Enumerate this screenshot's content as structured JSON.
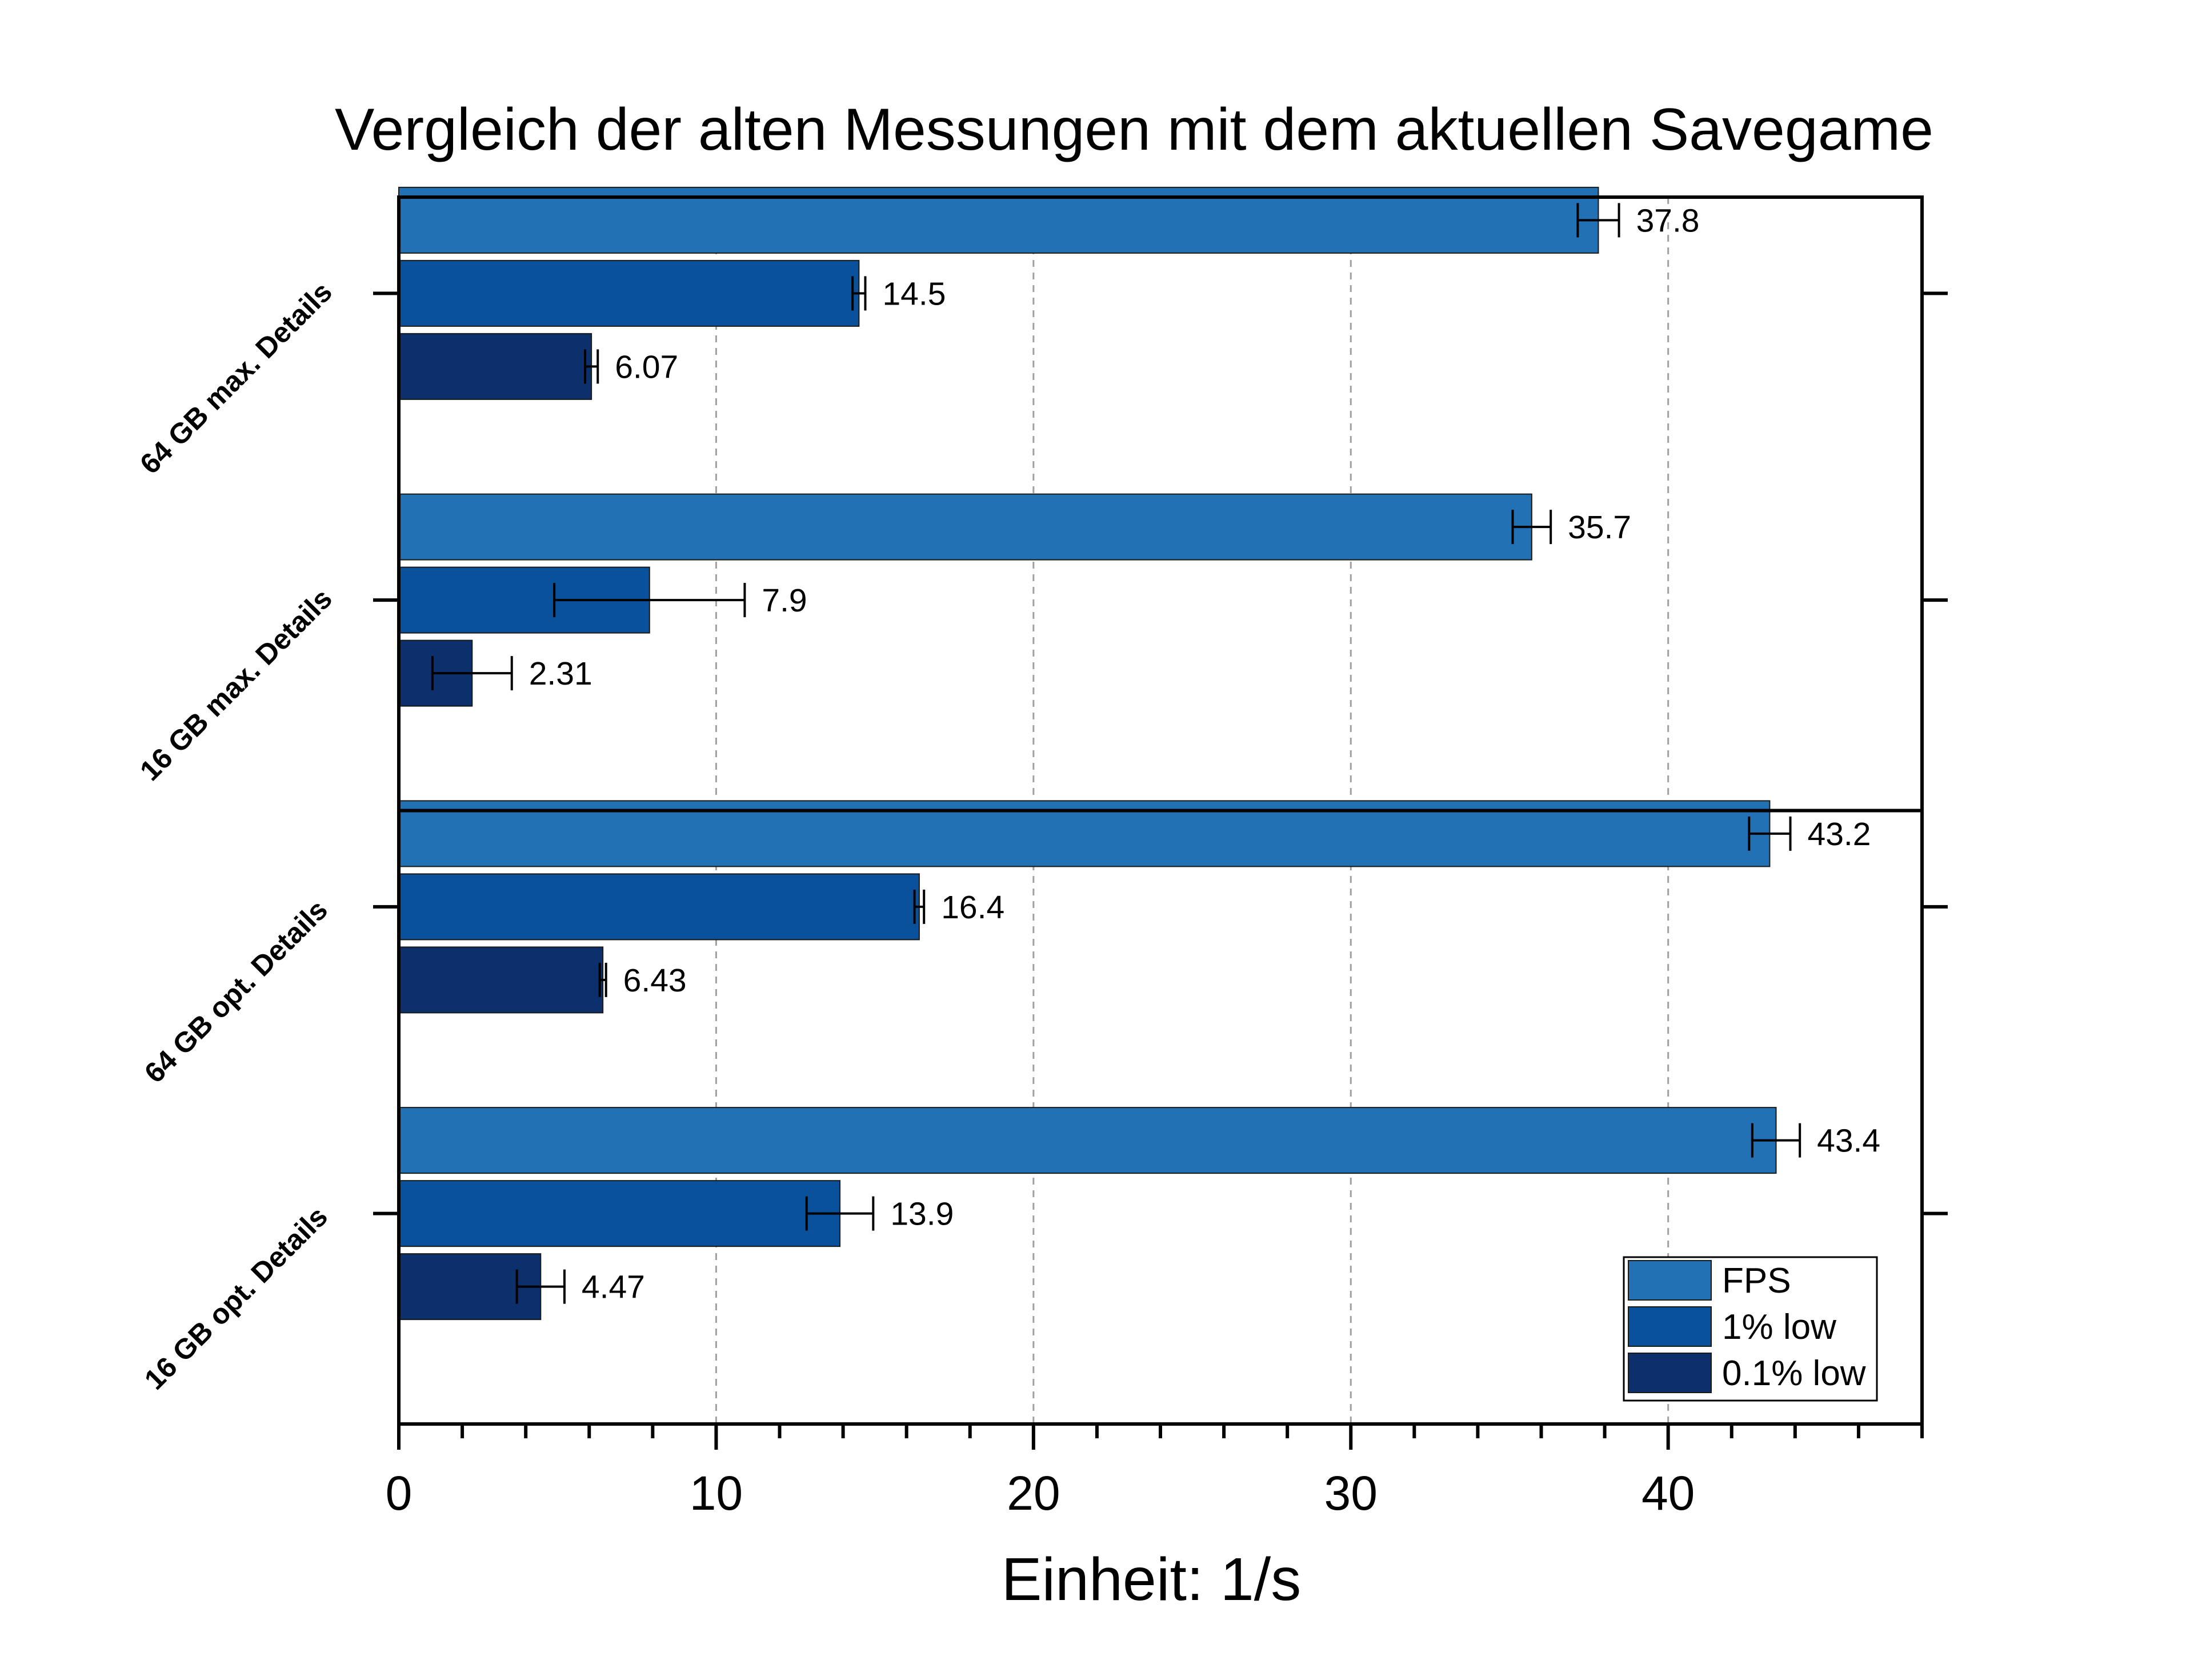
{
  "chart_data": {
    "type": "bar",
    "orientation": "horizontal",
    "title": "Vergleich der alten Messungen mit dem aktuellen Savegame",
    "xlabel": "Einheit: 1/s",
    "ylabel": "",
    "xlim": [
      0,
      48
    ],
    "x_ticks": [
      0,
      10,
      20,
      30,
      40
    ],
    "x_minor_step": 2,
    "grid": "vertical dashed at major ticks",
    "legend_position": "bottom-right",
    "categories": [
      "64 GB max. Details",
      "16 GB max. Details",
      "64 GB opt. Details",
      "16 GB opt. Details"
    ],
    "series": [
      {
        "name": "FPS",
        "color": "#2271b5",
        "values": [
          37.8,
          35.7,
          43.2,
          43.4
        ],
        "errors": [
          0.65,
          0.6,
          0.65,
          0.75
        ]
      },
      {
        "name": "1% low",
        "color": "#0a519b",
        "values": [
          14.5,
          7.9,
          16.4,
          13.9
        ],
        "errors": [
          0.2,
          3.0,
          0.15,
          1.05
        ]
      },
      {
        "name": "0.1% low",
        "color": "#0b306b",
        "values": [
          6.07,
          2.31,
          6.43,
          4.47
        ],
        "errors": [
          0.2,
          1.25,
          0.1,
          0.75
        ]
      }
    ],
    "data_labels": [
      [
        "37.8",
        "14.5",
        "6.07"
      ],
      [
        "35.7",
        "7.9",
        "2.31"
      ],
      [
        "43.2",
        "16.4",
        "6.43"
      ],
      [
        "43.4",
        "13.9",
        "4.47"
      ]
    ],
    "group_separator_after": 1
  }
}
